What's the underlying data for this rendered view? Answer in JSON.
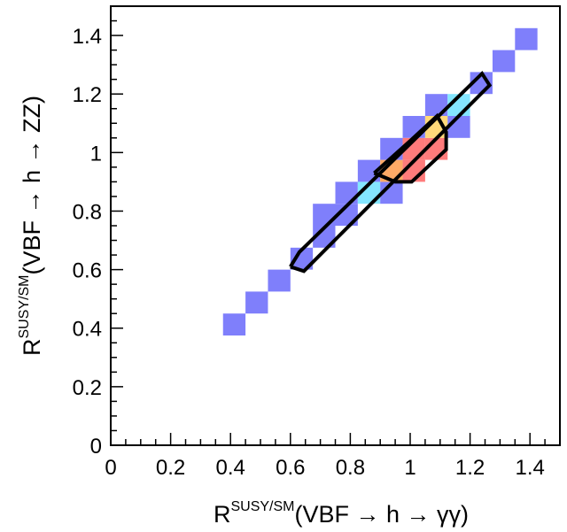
{
  "chart_data": {
    "type": "heatmap",
    "xlabel": {
      "base": "R",
      "superscript": "SUSY/SM",
      "argument": "(VBF → h → γγ)"
    },
    "ylabel": {
      "base": "R",
      "superscript": "SUSY/SM",
      "argument": "(VBF → h → ZZ)"
    },
    "xlim": [
      0,
      1.5
    ],
    "ylim": [
      0,
      1.5
    ],
    "x_ticks": [
      0,
      0.2,
      0.4,
      0.6,
      0.8,
      1,
      1.2,
      1.4
    ],
    "x_tick_labels": [
      "0",
      "0.2",
      "0.4",
      "0.6",
      "0.8",
      "1",
      "1.2",
      "1.4"
    ],
    "y_ticks": [
      0,
      0.2,
      0.4,
      0.6,
      0.8,
      1,
      1.2,
      1.4
    ],
    "y_tick_labels": [
      "0",
      "0.2",
      "0.4",
      "0.6",
      "0.8",
      "1",
      "1.2",
      "1.4"
    ],
    "grid": false,
    "bin_width": 0.075,
    "bin_height": 0.075,
    "colors": {
      "low": "#7f7ffb",
      "cyan": "#84e6ff",
      "green": "#a6ffcc",
      "yellow": "#ffd97a",
      "orange": "#ffaa66",
      "red": "#ff7b7b",
      "contour": "#000000"
    },
    "cells": [
      {
        "x": 0.375,
        "y": 0.375,
        "level": "low"
      },
      {
        "x": 0.45,
        "y": 0.45,
        "level": "low"
      },
      {
        "x": 0.525,
        "y": 0.525,
        "level": "low"
      },
      {
        "x": 0.6,
        "y": 0.6,
        "level": "low"
      },
      {
        "x": 0.675,
        "y": 0.675,
        "level": "low"
      },
      {
        "x": 0.75,
        "y": 0.75,
        "level": "low"
      },
      {
        "x": 0.675,
        "y": 0.75,
        "level": "low"
      },
      {
        "x": 0.75,
        "y": 0.825,
        "level": "low"
      },
      {
        "x": 0.825,
        "y": 0.825,
        "level": "cyan"
      },
      {
        "x": 0.825,
        "y": 0.9,
        "level": "low"
      },
      {
        "x": 0.9,
        "y": 0.825,
        "level": "low"
      },
      {
        "x": 0.9,
        "y": 0.9,
        "level": "orange"
      },
      {
        "x": 0.9,
        "y": 0.975,
        "level": "low"
      },
      {
        "x": 0.975,
        "y": 0.9,
        "level": "red"
      },
      {
        "x": 0.975,
        "y": 0.975,
        "level": "red"
      },
      {
        "x": 0.975,
        "y": 1.05,
        "level": "low"
      },
      {
        "x": 1.05,
        "y": 0.975,
        "level": "red"
      },
      {
        "x": 1.05,
        "y": 1.05,
        "level": "yellow"
      },
      {
        "x": 1.05,
        "y": 1.125,
        "level": "low"
      },
      {
        "x": 1.125,
        "y": 1.05,
        "level": "low"
      },
      {
        "x": 1.125,
        "y": 1.125,
        "level": "cyan"
      },
      {
        "x": 1.2,
        "y": 1.2,
        "level": "low"
      },
      {
        "x": 1.275,
        "y": 1.275,
        "level": "low"
      },
      {
        "x": 1.35,
        "y": 1.35,
        "level": "low"
      }
    ],
    "contours": [
      {
        "name": "outer",
        "points": [
          [
            0.6,
            0.61
          ],
          [
            0.645,
            0.595
          ],
          [
            1.265,
            1.23
          ],
          [
            1.24,
            1.27
          ],
          [
            0.63,
            0.66
          ],
          [
            0.6,
            0.61
          ]
        ]
      },
      {
        "name": "inner",
        "points": [
          [
            0.88,
            0.93
          ],
          [
            0.95,
            0.9
          ],
          [
            1.005,
            0.9
          ],
          [
            1.12,
            1.01
          ],
          [
            1.12,
            1.07
          ],
          [
            1.09,
            1.125
          ],
          [
            1.0,
            1.04
          ],
          [
            0.88,
            0.93
          ]
        ]
      }
    ]
  }
}
